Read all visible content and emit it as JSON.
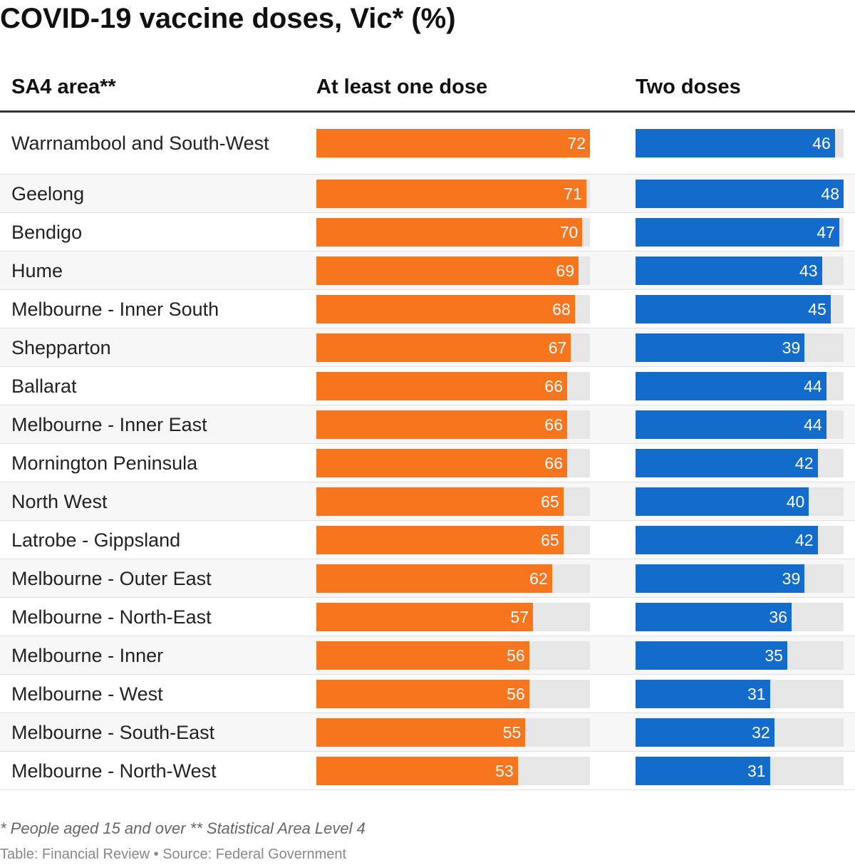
{
  "chart_data": {
    "type": "table",
    "title": "COVID-19 vaccine doses, Vic* (%)",
    "columns": [
      "SA4 area**",
      "At least one dose",
      "Two doses"
    ],
    "scales": {
      "one_dose_max": 72,
      "two_doses_max": 48
    },
    "rows": [
      {
        "area": "Warrnambool and South-West",
        "one": 72,
        "two": 46
      },
      {
        "area": "Geelong",
        "one": 71,
        "two": 48
      },
      {
        "area": "Bendigo",
        "one": 70,
        "two": 47
      },
      {
        "area": "Hume",
        "one": 69,
        "two": 43
      },
      {
        "area": "Melbourne - Inner South",
        "one": 68,
        "two": 45
      },
      {
        "area": "Shepparton",
        "one": 67,
        "two": 39
      },
      {
        "area": "Ballarat",
        "one": 66,
        "two": 44
      },
      {
        "area": "Melbourne - Inner East",
        "one": 66,
        "two": 44
      },
      {
        "area": "Mornington Peninsula",
        "one": 66,
        "two": 42
      },
      {
        "area": "North West",
        "one": 65,
        "two": 40
      },
      {
        "area": "Latrobe - Gippsland",
        "one": 65,
        "two": 42
      },
      {
        "area": "Melbourne - Outer East",
        "one": 62,
        "two": 39
      },
      {
        "area": "Melbourne - North-East",
        "one": 57,
        "two": 36
      },
      {
        "area": "Melbourne - Inner",
        "one": 56,
        "two": 35
      },
      {
        "area": "Melbourne - West",
        "one": 56,
        "two": 31
      },
      {
        "area": "Melbourne - South-East",
        "one": 55,
        "two": 32
      },
      {
        "area": "Melbourne - North-West",
        "one": 53,
        "two": 31
      }
    ],
    "colors": {
      "one": "#f7751c",
      "two": "#136ccc",
      "track": "#e6e6e6"
    }
  },
  "footnote": "* People aged 15 and over ** Statistical Area Level 4",
  "source": "Table: Financial Review • Source: Federal Government"
}
